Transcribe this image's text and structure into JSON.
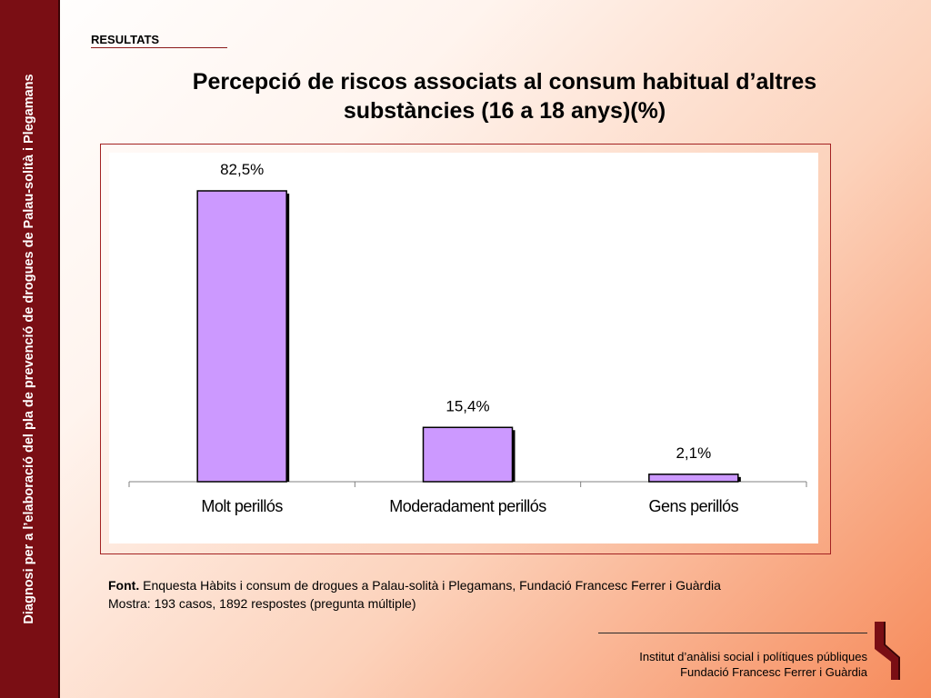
{
  "sidebar": {
    "text": "Diagnosi per a l’elaboració del pla de prevenció de drogues de Palau-solità i Plegamans"
  },
  "section_label": "RESULTATS",
  "title": "Percepció de riscos associats al consum habitual d’altres substàncies (16 a 18 anys)(%)",
  "chart_data": {
    "type": "bar",
    "categories": [
      "Molt perillós",
      "Moderadament perillós",
      "Gens perillós"
    ],
    "values": [
      82.5,
      15.4,
      2.1
    ],
    "data_labels": [
      "82,5%",
      "15,4%",
      "2,1%"
    ],
    "ylim": [
      0,
      100
    ],
    "grid": false,
    "legend": "none",
    "bar_color": "#cc99ff"
  },
  "source": {
    "label": "Font.",
    "text": " Enquesta Hàbits i consum de drogues a Palau-solità i Plegamans, Fundació Francesc Ferrer i Guàrdia",
    "sample": "Mostra: 193 casos, 1892 respostes (pregunta múltiple)"
  },
  "footer": {
    "line1": "Institut d’anàlisi social i polítiques públiques",
    "line2": "Fundació Francesc Ferrer i Guàrdia"
  },
  "colors": {
    "sidebar": "#7a0e14",
    "frame": "#a32222",
    "logo": "#7a0e14"
  }
}
